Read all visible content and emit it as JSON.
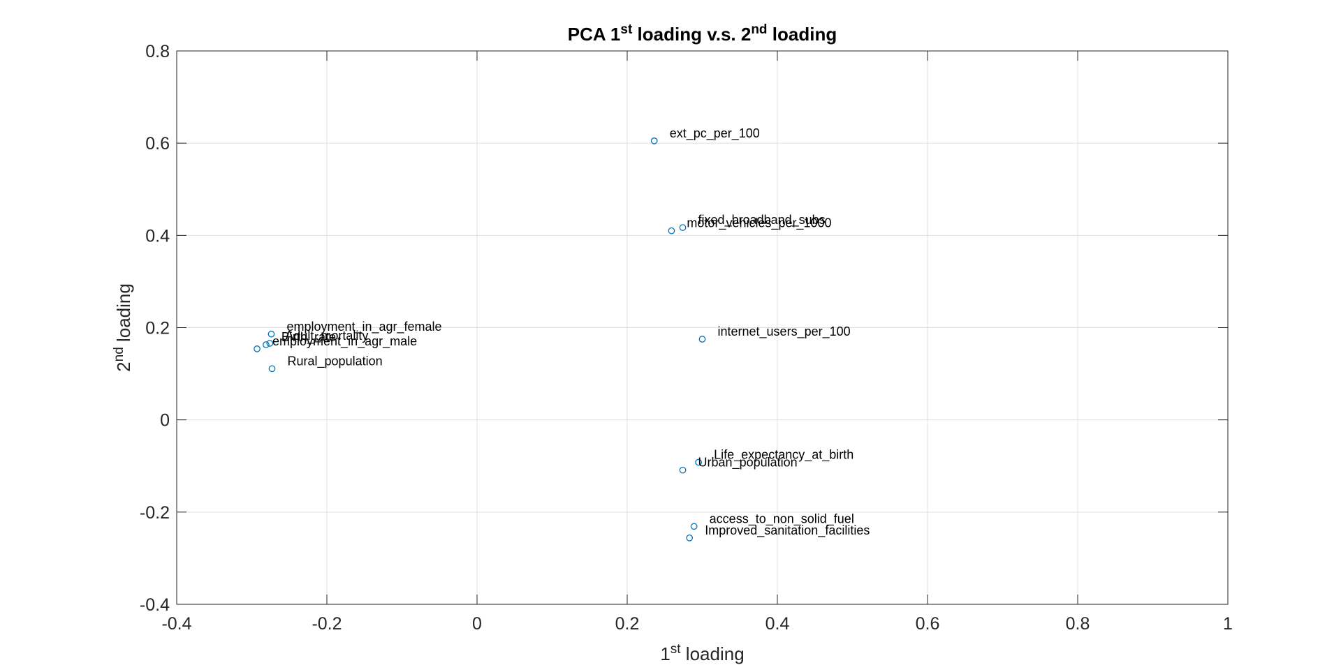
{
  "chart_data": {
    "type": "scatter",
    "title": {
      "parts": [
        {
          "text": "PCA 1"
        },
        {
          "text": "st",
          "sup": true
        },
        {
          "text": " loading v.s. 2"
        },
        {
          "text": "nd",
          "sup": true
        },
        {
          "text": " loading"
        }
      ]
    },
    "xlabel": {
      "parts": [
        {
          "text": "1"
        },
        {
          "text": "st",
          "sup": true
        },
        {
          "text": " loading"
        }
      ]
    },
    "ylabel": {
      "parts": [
        {
          "text": "2"
        },
        {
          "text": "nd",
          "sup": true
        },
        {
          "text": " loading"
        }
      ]
    },
    "xlim": [
      -0.4,
      1
    ],
    "ylim": [
      -0.4,
      0.8
    ],
    "xticks": [
      -0.4,
      -0.2,
      0,
      0.2,
      0.4,
      0.6,
      0.8,
      1
    ],
    "xtick_labels": [
      "-0.4",
      "-0.2",
      "0",
      "0.2",
      "0.4",
      "0.6",
      "0.8",
      "1"
    ],
    "yticks": [
      -0.4,
      -0.2,
      0,
      0.2,
      0.4,
      0.6,
      0.8
    ],
    "ytick_labels": [
      "-0.4",
      "-0.2",
      "0",
      "0.2",
      "0.4",
      "0.6",
      "0.8"
    ],
    "grid": true,
    "marker": "circle",
    "marker_color": "#0072BD",
    "points": [
      {
        "label": "ext_pc_per_100",
        "x": 0.236,
        "y": 0.605
      },
      {
        "label": "fixed_broadband_subs",
        "x": 0.274,
        "y": 0.417
      },
      {
        "label": "motor_vehicles_per_1000",
        "x": 0.259,
        "y": 0.41
      },
      {
        "label": "internet_users_per_100",
        "x": 0.3,
        "y": 0.175
      },
      {
        "label": "employment_in_agr_female",
        "x": -0.274,
        "y": 0.186
      },
      {
        "label": "Adult_mortality",
        "x": -0.276,
        "y": 0.166
      },
      {
        "label": "Birth_rate",
        "x": -0.281,
        "y": 0.163
      },
      {
        "label": "employment_in_agr_male",
        "x": -0.293,
        "y": 0.154
      },
      {
        "label": "Rural_population",
        "x": -0.273,
        "y": 0.111
      },
      {
        "label": "Life_expectancy_at_birth",
        "x": 0.295,
        "y": -0.092
      },
      {
        "label": "Urban_population",
        "x": 0.274,
        "y": -0.109
      },
      {
        "label": "access_to_non_solid_fuel",
        "x": 0.289,
        "y": -0.231
      },
      {
        "label": "Improved_sanitation_facilities",
        "x": 0.283,
        "y": -0.256
      }
    ]
  }
}
